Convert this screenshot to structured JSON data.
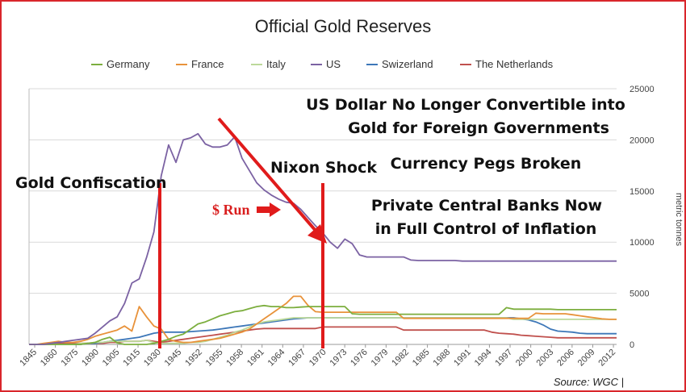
{
  "chart_data": {
    "type": "line",
    "title": "Official Gold Reserves",
    "ylabel": "metric tonnes",
    "source": "Source: WGC |",
    "ylim": [
      0,
      25000
    ],
    "yticks": [
      "0",
      "5000",
      "10000",
      "15000",
      "20000",
      "25000"
    ],
    "xticks": [
      "1845",
      "1860",
      "1875",
      "1890",
      "1905",
      "1915",
      "1930",
      "1945",
      "1952",
      "1955",
      "1958",
      "1961",
      "1964",
      "1967",
      "1970",
      "1973",
      "1976",
      "1979",
      "1982",
      "1985",
      "1988",
      "1991",
      "1994",
      "1997",
      "2000",
      "2003",
      "2006",
      "2009",
      "2012"
    ],
    "legend_position": "top",
    "series": [
      {
        "name": "Germany",
        "color": "#7cae3e",
        "values": [
          0,
          0,
          0,
          0,
          0,
          0,
          0,
          0,
          100,
          200,
          500,
          700,
          150,
          0,
          0,
          0,
          0,
          100,
          300,
          500,
          800,
          1000,
          1500,
          2000,
          2200,
          2500,
          2800,
          3000,
          3200,
          3300,
          3500,
          3700,
          3800,
          3700,
          3700,
          3600,
          3600,
          3650,
          3700,
          3700,
          3700,
          3700,
          3700,
          3700,
          3000,
          2950,
          2950,
          2950,
          2950,
          2950,
          2950,
          2950,
          2950,
          2950,
          2950,
          2950,
          2950,
          2950,
          2950,
          2950,
          2950,
          2950,
          2950,
          2950,
          2950,
          3600,
          3450,
          3450,
          3450,
          3450,
          3450,
          3450,
          3400,
          3400,
          3400,
          3400,
          3400,
          3400,
          3400,
          3400,
          3400
        ]
      },
      {
        "name": "France",
        "color": "#e8923a",
        "values": [
          0,
          0,
          100,
          200,
          300,
          200,
          200,
          300,
          500,
          800,
          1000,
          1200,
          1400,
          1800,
          1300,
          3700,
          2700,
          1800,
          1500,
          500,
          300,
          200,
          200,
          300,
          400,
          500,
          600,
          800,
          1000,
          1200,
          1500,
          2000,
          2500,
          3000,
          3500,
          4000,
          4700,
          4700,
          3800,
          3200,
          3150,
          3150,
          3150,
          3150,
          3150,
          3150,
          3150,
          3150,
          3150,
          3150,
          3150,
          2550,
          2550,
          2550,
          2550,
          2550,
          2550,
          2550,
          2550,
          2550,
          2550,
          2550,
          2550,
          2550,
          2550,
          2550,
          2550,
          2550,
          2550,
          3050,
          3000,
          3000,
          3000,
          3000,
          2900,
          2800,
          2700,
          2600,
          2500,
          2450,
          2450
        ]
      },
      {
        "name": "Italy",
        "color": "#bcd99a",
        "values": [
          0,
          0,
          0,
          0,
          0,
          0,
          0,
          100,
          100,
          200,
          200,
          300,
          300,
          300,
          300,
          300,
          400,
          200,
          100,
          100,
          100,
          100,
          200,
          200,
          300,
          500,
          700,
          900,
          1200,
          1400,
          1700,
          2000,
          2200,
          2300,
          2400,
          2500,
          2600,
          2600,
          2600,
          2600,
          2600,
          2600,
          2600,
          2600,
          2600,
          2600,
          2600,
          2600,
          2600,
          2600,
          2600,
          2600,
          2600,
          2600,
          2600,
          2600,
          2600,
          2600,
          2600,
          2600,
          2600,
          2600,
          2600,
          2600,
          2600,
          2600,
          2450,
          2450,
          2450,
          2450,
          2450,
          2450,
          2450,
          2450,
          2450,
          2450,
          2450,
          2450,
          2450,
          2450,
          2450
        ]
      },
      {
        "name": "US",
        "color": "#7b62a3",
        "values": [
          0,
          0,
          0,
          100,
          200,
          300,
          400,
          500,
          600,
          1100,
          1700,
          2300,
          2700,
          4000,
          6000,
          6400,
          8500,
          11000,
          16500,
          19500,
          17800,
          20000,
          20200,
          20600,
          19600,
          19300,
          19300,
          19500,
          20300,
          18200,
          17000,
          15800,
          15100,
          14600,
          14200,
          13900,
          13800,
          13200,
          12400,
          11600,
          10900,
          10000,
          9400,
          10300,
          9850,
          8750,
          8550,
          8550,
          8550,
          8550,
          8550,
          8550,
          8250,
          8200,
          8200,
          8200,
          8200,
          8200,
          8200,
          8150,
          8150,
          8150,
          8150,
          8150,
          8150,
          8150,
          8150,
          8150,
          8150,
          8150,
          8150,
          8150,
          8150,
          8150,
          8150,
          8150,
          8150,
          8150,
          8150,
          8150,
          8150
        ]
      },
      {
        "name": "Swizerland",
        "color": "#3d77b8",
        "values": [
          0,
          0,
          0,
          0,
          0,
          0,
          0,
          0,
          100,
          100,
          200,
          300,
          400,
          500,
          600,
          700,
          900,
          1100,
          1200,
          1200,
          1200,
          1200,
          1250,
          1300,
          1350,
          1400,
          1500,
          1600,
          1700,
          1800,
          1900,
          2000,
          2100,
          2200,
          2300,
          2400,
          2500,
          2550,
          2600,
          2600,
          2600,
          2600,
          2600,
          2600,
          2600,
          2600,
          2600,
          2600,
          2600,
          2600,
          2600,
          2600,
          2600,
          2600,
          2600,
          2600,
          2600,
          2600,
          2600,
          2600,
          2600,
          2600,
          2600,
          2600,
          2600,
          2600,
          2600,
          2500,
          2400,
          2200,
          1900,
          1500,
          1300,
          1250,
          1200,
          1100,
          1050,
          1050,
          1050,
          1050,
          1050
        ]
      },
      {
        "name": "The Netherlands",
        "color": "#c0504d",
        "values": [
          0,
          0,
          0,
          0,
          100,
          100,
          100,
          100,
          100,
          100,
          100,
          200,
          200,
          300,
          300,
          300,
          400,
          300,
          200,
          300,
          400,
          500,
          600,
          700,
          800,
          900,
          1000,
          1100,
          1200,
          1300,
          1400,
          1500,
          1550,
          1550,
          1550,
          1550,
          1550,
          1550,
          1550,
          1550,
          1700,
          1700,
          1700,
          1700,
          1700,
          1700,
          1700,
          1700,
          1700,
          1700,
          1700,
          1400,
          1400,
          1400,
          1400,
          1400,
          1400,
          1400,
          1400,
          1400,
          1400,
          1400,
          1400,
          1200,
          1100,
          1050,
          1000,
          900,
          850,
          800,
          750,
          700,
          650,
          650,
          650,
          650,
          650,
          650,
          650,
          650,
          650
        ]
      }
    ],
    "annotations": [
      "US Dollar No Longer Convertible into",
      "Gold for Foreign Governments",
      "Nixon Shock",
      "Currency Pegs Broken",
      "Gold Confiscation",
      "$ Run",
      "Private Central Banks Now",
      "in Full Control of Inflation"
    ]
  },
  "colors": {
    "marker": "#e01b1b",
    "frame": "#d9262c"
  }
}
